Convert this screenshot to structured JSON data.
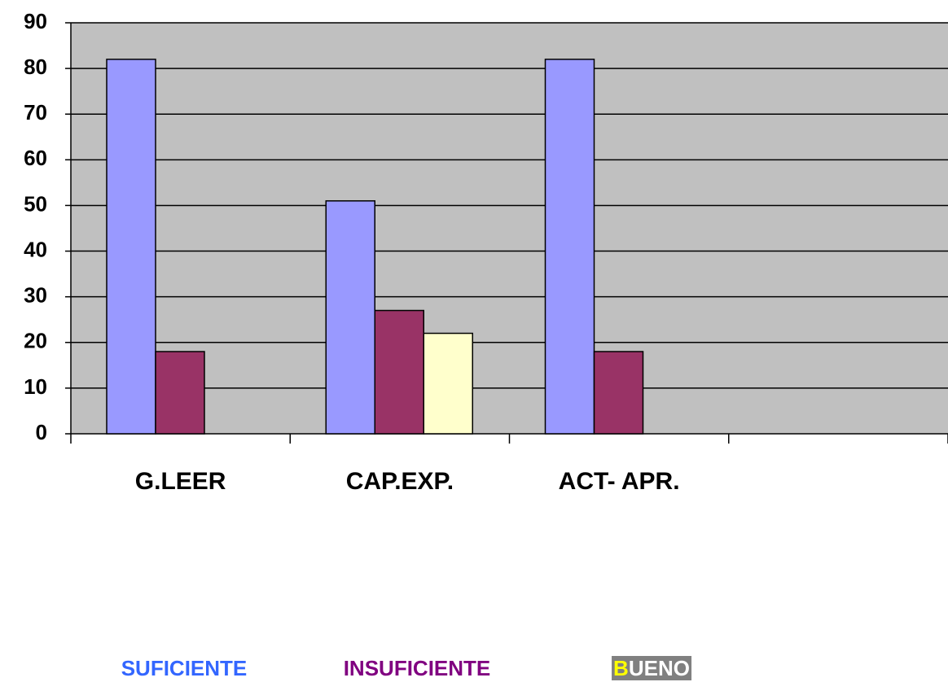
{
  "chart_data": {
    "type": "bar",
    "categories": [
      "G.LEER",
      "CAP.EXP.",
      "ACT- APR.",
      null
    ],
    "series": [
      {
        "name": "SUFICIENTE",
        "color": "#9999ff",
        "legend_color": "#3366ff",
        "values": [
          82,
          51,
          82,
          null
        ]
      },
      {
        "name": "INSUFICIENTE",
        "color": "#993366",
        "legend_color": "#800080",
        "values": [
          18,
          27,
          18,
          null
        ]
      },
      {
        "name": "BUENO",
        "color": "#ffffcc",
        "legend_color": "#ffffff",
        "values": [
          null,
          22,
          null,
          null
        ]
      }
    ],
    "ylim": [
      0,
      90
    ],
    "yticks": [
      0,
      10,
      20,
      30,
      40,
      50,
      60,
      70,
      80,
      90
    ],
    "grid": true,
    "plot_background": "#c0c0c0"
  }
}
